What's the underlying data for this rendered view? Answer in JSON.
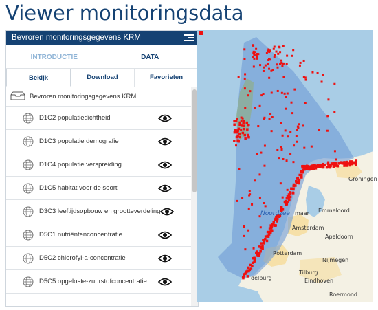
{
  "page_title": "Viewer monitoringsdata",
  "panel": {
    "title": "Bevroren monitoringsgegevens KRM",
    "tabs": [
      "INTRODUCTIE",
      "DATA"
    ],
    "subtabs": [
      "Bekijk",
      "Download",
      "Favorieten"
    ],
    "root_item": "Bevroren monitoringsgegevens KRM",
    "items": [
      "D1C2 populatiedichtheid",
      "D1C3 populatie demografie",
      "D1C4 populatie verspreiding",
      "D1C5 habitat voor de soort",
      "D3C3 leeftijdsopbouw en grootteverdeling",
      "D5C1 nutriëntenconcentratie",
      "D5C2 chlorofyl-a-concentratie",
      "D5C5 opgeloste-zuurstofconcentratie"
    ]
  },
  "map": {
    "labels": {
      "groningen": "Groningen",
      "noordzee": "Noordzee",
      "emmeloord": "Emmeloord",
      "amsterdam": "Amsterdam",
      "apeldoorn": "Apeldoorn",
      "rotterdam": "Rotterdam",
      "nijmegen": "Nijmegen",
      "tilburg": "Tilburg",
      "eindhoven": "Eindhoven",
      "roermond": "Roermond",
      "ijmuiden": "maar",
      "middelburg": "delburg"
    },
    "colors": {
      "sea": "#a9cde6",
      "zone": "#6f9bd6",
      "land": "#f4f1e4",
      "urban": "#f6d98f",
      "points": "#ee1111"
    }
  }
}
